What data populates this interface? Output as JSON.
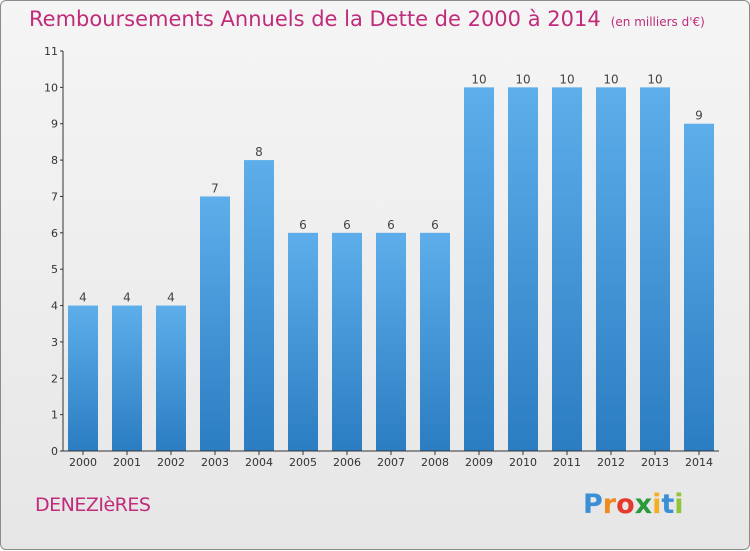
{
  "header": {
    "title": "Remboursements Annuels de la Dette de 2000 à 2014",
    "unit": "(en milliers d'€)"
  },
  "footer": {
    "place": "DENEZIèRES",
    "logo_letters": [
      "P",
      "r",
      "o",
      "x",
      "i",
      "t",
      "i"
    ],
    "logo_colors": [
      "#3a8fd6",
      "#f08a1e",
      "#e53a2b",
      "#2a9a3c",
      "#f2b01e",
      "#3a8fd6",
      "#8fc43c"
    ]
  },
  "colors": {
    "title": "#c02b7a",
    "bar_light": "#5daeea",
    "bar_dark": "#2b7dc2",
    "axis": "#333333"
  },
  "chart_data": {
    "type": "bar",
    "title": "Remboursements Annuels de la Dette de 2000 à 2014",
    "categories": [
      "2000",
      "2001",
      "2002",
      "2003",
      "2004",
      "2005",
      "2006",
      "2007",
      "2008",
      "2009",
      "2010",
      "2011",
      "2012",
      "2013",
      "2014"
    ],
    "values": [
      4,
      4,
      4,
      7,
      8,
      6,
      6,
      6,
      6,
      10,
      10,
      10,
      10,
      10,
      9
    ],
    "yticks": [
      0,
      1,
      2,
      3,
      4,
      5,
      6,
      7,
      8,
      9,
      10,
      11
    ],
    "ylim": [
      0,
      11
    ],
    "xlabel": "",
    "ylabel": "",
    "grid": false,
    "data_labels": true
  }
}
